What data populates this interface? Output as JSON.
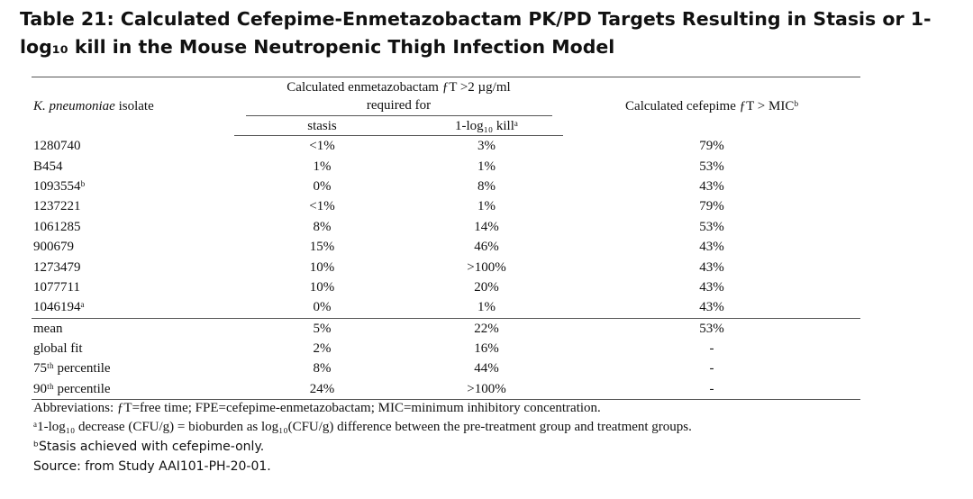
{
  "title": "Table 21: Calculated Cefepime-Enmetazobactam PK/PD Targets Resulting in Stasis or 1-log₁₀ kill in the Mouse Neutropenic Thigh Infection Model",
  "header": {
    "isolate_species": "K. pneumoniae",
    "isolate_suffix": " isolate",
    "enmetazobactam": "Calculated enmetazobactam ƒT >2 µg/ml required for",
    "stasis": "stasis",
    "kill": "1-log₁₀ killᵃ",
    "cefepime": "Calculated cefepime ƒT > MICᵇ"
  },
  "rows": [
    [
      "1280740",
      "<1%",
      "3%",
      "79%"
    ],
    [
      "B454",
      "1%",
      "1%",
      "53%"
    ],
    [
      "1093554ᵇ",
      "0%",
      "8%",
      "43%"
    ],
    [
      "1237221",
      "<1%",
      "1%",
      "79%"
    ],
    [
      "1061285",
      "8%",
      "14%",
      "53%"
    ],
    [
      "900679",
      "15%",
      "46%",
      "43%"
    ],
    [
      "1273479",
      "10%",
      ">100%",
      "43%"
    ],
    [
      "1077711",
      "10%",
      "20%",
      "43%"
    ],
    [
      "1046194ᵃ",
      "0%",
      "1%",
      "43%"
    ]
  ],
  "summary": [
    [
      "mean",
      "5%",
      "22%",
      "53%"
    ],
    [
      "global fit",
      "2%",
      "16%",
      "-"
    ],
    [
      "75ᵗʰ percentile",
      "8%",
      "44%",
      "-"
    ],
    [
      "90ᵗʰ percentile",
      "24%",
      ">100%",
      "-"
    ]
  ],
  "footnotes": {
    "abbreviations": "Abbreviations: ƒT=free time; FPE=cefepime-enmetazobactam; MIC=minimum inhibitory concentration.",
    "a": "ᵃ1-log₁₀ decrease (CFU/g) = bioburden as log₁₀(CFU/g) difference between the pre-treatment group and treatment groups.",
    "b": "ᵇStasis achieved with cefepime-only.",
    "source": "Source: from Study AAI101-PH-20-01."
  }
}
